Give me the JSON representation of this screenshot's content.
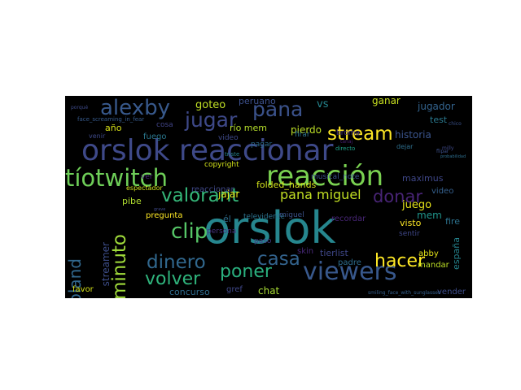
{
  "wordcloud": {
    "background": "#000000",
    "words": [
      {
        "text": "orslok",
        "color": "#26868e"
      },
      {
        "text": "orslok reaccionar",
        "color": "#3e4989"
      },
      {
        "text": "reacción",
        "color": "#7ad151"
      },
      {
        "text": "viewers",
        "color": "#38588c"
      },
      {
        "text": "tíotwitch",
        "color": "#6ece58"
      },
      {
        "text": "alexby",
        "color": "#38598c"
      },
      {
        "text": "jugar",
        "color": "#3e4989"
      },
      {
        "text": "pana",
        "color": "#3b528b"
      },
      {
        "text": "stream",
        "color": "#fde725"
      },
      {
        "text": "clip",
        "color": "#56c667"
      },
      {
        "text": "hacer",
        "color": "#fde725"
      },
      {
        "text": "valorant",
        "color": "#35b779"
      },
      {
        "text": "dinero",
        "color": "#31688e"
      },
      {
        "text": "casa",
        "color": "#33638d"
      },
      {
        "text": "poner",
        "color": "#2ab07f"
      },
      {
        "text": "volver",
        "color": "#2fb47c"
      },
      {
        "text": "donar",
        "color": "#482475"
      },
      {
        "text": "minuto",
        "color": "#9fda3a"
      },
      {
        "text": "egoland",
        "color": "#31688e"
      },
      {
        "text": "pana miguel",
        "color": "#c2df23"
      },
      {
        "text": "vs",
        "color": "#25858e"
      },
      {
        "text": "goteo",
        "color": "#c0df25"
      },
      {
        "text": "peruano",
        "color": "#3c508b"
      },
      {
        "text": "ganar",
        "color": "#c8e020"
      },
      {
        "text": "jugador",
        "color": "#33638d"
      },
      {
        "text": "test",
        "color": "#2a788e"
      },
      {
        "text": "historia",
        "color": "#3a548c"
      },
      {
        "text": "año",
        "color": "#d8e219"
      },
      {
        "text": "río mem",
        "color": "#b5de2b"
      },
      {
        "text": "pierdo",
        "color": "#bddf26"
      },
      {
        "text": "jajar",
        "color": "#e5e419"
      },
      {
        "text": "folded_hands",
        "color": "#d2e21b"
      },
      {
        "text": "maximus",
        "color": "#3f4788"
      },
      {
        "text": "juego",
        "color": "#e7e419"
      },
      {
        "text": "mem",
        "color": "#1f958b"
      },
      {
        "text": "skin",
        "color": "#482878"
      },
      {
        "text": "tierlist",
        "color": "#3f4788"
      },
      {
        "text": "abby",
        "color": "#e5e419"
      },
      {
        "text": "mandar",
        "color": "#bddf26"
      },
      {
        "text": "vender",
        "color": "#3d4d8a"
      },
      {
        "text": "españa",
        "color": "#25848e"
      },
      {
        "text": "chat",
        "color": "#a8db34"
      },
      {
        "text": "concurso",
        "color": "#2f6c8e"
      },
      {
        "text": "favor",
        "color": "#d5e21a"
      },
      {
        "text": "streamer",
        "color": "#3d4e8a"
      },
      {
        "text": "pibe",
        "color": "#b0dd2f"
      },
      {
        "text": "pregunta",
        "color": "#fde725"
      },
      {
        "text": "él",
        "color": "#2e6f8e"
      },
      {
        "text": "televidente",
        "color": "#2c728e"
      },
      {
        "text": "miguel",
        "color": "#3b528b"
      },
      {
        "text": "recordar",
        "color": "#482677"
      },
      {
        "text": "visto",
        "color": "#fde725"
      },
      {
        "text": "fire",
        "color": "#2c728e"
      },
      {
        "text": "video",
        "color": "#35608d"
      },
      {
        "text": "sentir",
        "color": "#3f4788"
      },
      {
        "text": "padre",
        "color": "#2e6d8e"
      },
      {
        "text": "gref",
        "color": "#3f4788"
      },
      {
        "text": "persona",
        "color": "#46337e"
      },
      {
        "text": "paso",
        "color": "#433d84"
      },
      {
        "text": "reaccionar",
        "color": "#3f4788"
      },
      {
        "text": "copyright",
        "color": "#d2e21b"
      },
      {
        "text": "musical_note",
        "color": "#3b528b"
      },
      {
        "text": "video",
        "color": "#3e4989"
      },
      {
        "text": "fuego",
        "color": "#2a788e"
      },
      {
        "text": "cosa",
        "color": "#414487"
      },
      {
        "text": "venir",
        "color": "#3e4989"
      },
      {
        "text": "espectador",
        "color": "#d0e11c"
      },
      {
        "text": "ver",
        "color": "#482475"
      },
      {
        "text": "pagar",
        "color": "#2e6d8e"
      },
      {
        "text": "firar",
        "color": "#2c728e"
      },
      {
        "text": "broma",
        "color": "#46337e"
      },
      {
        "text": "dejar",
        "color": "#2e6f8e"
      },
      {
        "text": "triste",
        "color": "#26818e"
      },
      {
        "text": "directo",
        "color": "#1fa088"
      },
      {
        "text": "face_screaming_in_fear",
        "color": "#375b8d"
      },
      {
        "text": "porqué",
        "color": "#3e4a89"
      },
      {
        "text": "chico",
        "color": "#3b528b"
      },
      {
        "text": "milly",
        "color": "#3e4989"
      },
      {
        "text": "probabilidad",
        "color": "#2e6f8e"
      },
      {
        "text": "smiling_face_with_sunglasses",
        "color": "#35608d"
      },
      {
        "text": "grave",
        "color": "#3e4989"
      },
      {
        "text": "tanaj",
        "color": "#481f70"
      },
      {
        "text": "flipar",
        "color": "#3c508b"
      }
    ]
  }
}
